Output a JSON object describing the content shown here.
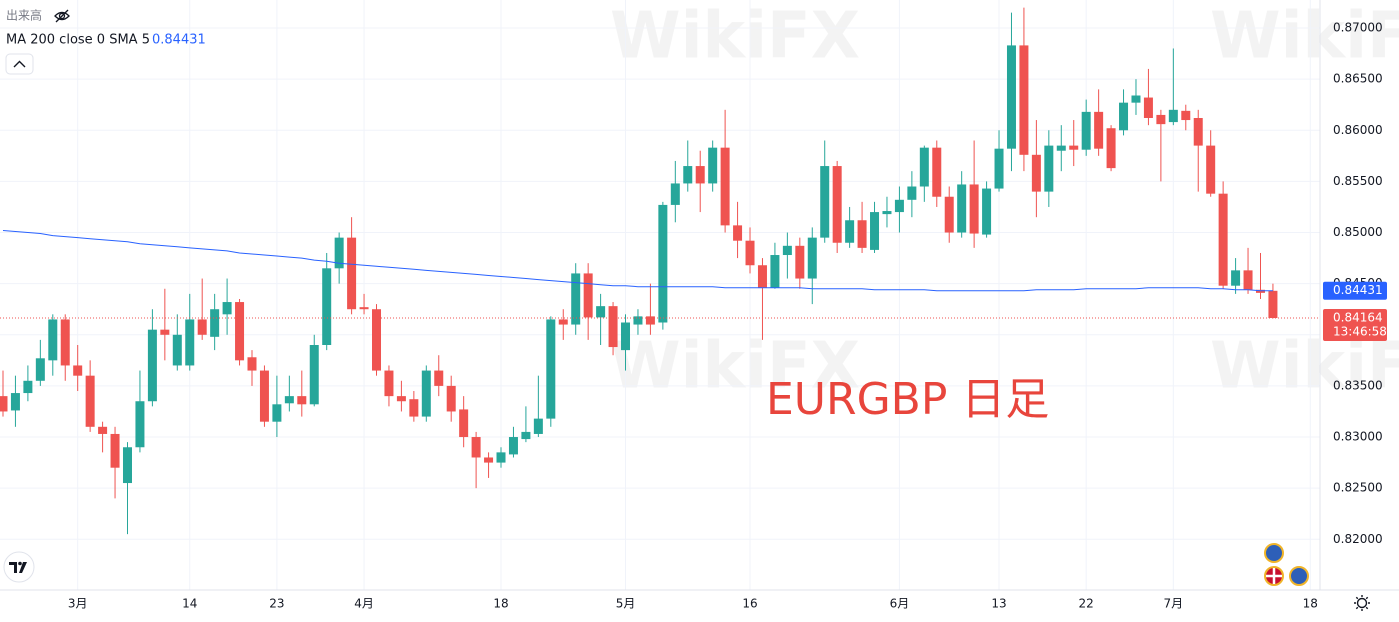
{
  "header": {
    "volume_label": "出来高"
  },
  "chart_data": {
    "type": "candlestick",
    "annotation": "EURGBP 日足",
    "watermark": "WikiFX",
    "up_color": "#26a69a",
    "down_color": "#ef5350",
    "grid": true,
    "xlim": [
      -0.24,
      105.78
    ],
    "xticks": [
      {
        "value": 6,
        "label": "3月"
      },
      {
        "value": 15,
        "label": "14"
      },
      {
        "value": 22,
        "label": "23"
      },
      {
        "value": 29,
        "label": "4月"
      },
      {
        "value": 40,
        "label": "18"
      },
      {
        "value": 50,
        "label": "5月"
      },
      {
        "value": 60,
        "label": "16"
      },
      {
        "value": 72,
        "label": "6月"
      },
      {
        "value": 80,
        "label": "13"
      },
      {
        "value": 87,
        "label": "22"
      },
      {
        "value": 94,
        "label": "7月"
      },
      {
        "value": 105,
        "label": "18"
      }
    ],
    "ylim": [
      0.81504,
      0.87274
    ],
    "yticks": [
      {
        "value": 0.82,
        "label": "0.82000"
      },
      {
        "value": 0.825,
        "label": "0.82500"
      },
      {
        "value": 0.83,
        "label": "0.83000"
      },
      {
        "value": 0.835,
        "label": "0.83500"
      },
      {
        "value": 0.84,
        "label": "0.84000"
      },
      {
        "value": 0.845,
        "label": "0.84500"
      },
      {
        "value": 0.85,
        "label": "0.85000"
      },
      {
        "value": 0.855,
        "label": "0.85500"
      },
      {
        "value": 0.86,
        "label": "0.86000"
      },
      {
        "value": 0.865,
        "label": "0.86500"
      },
      {
        "value": 0.87,
        "label": "0.87000"
      }
    ],
    "ohlc_order": [
      "open",
      "high",
      "low",
      "close"
    ],
    "candles": [
      [
        0.834,
        0.8365,
        0.832,
        0.8325
      ],
      [
        0.8326,
        0.836,
        0.831,
        0.8343
      ],
      [
        0.8343,
        0.837,
        0.8335,
        0.8355
      ],
      [
        0.8355,
        0.8395,
        0.835,
        0.8377
      ],
      [
        0.8375,
        0.842,
        0.836,
        0.8415
      ],
      [
        0.8415,
        0.842,
        0.8355,
        0.837
      ],
      [
        0.837,
        0.839,
        0.8345,
        0.836
      ],
      [
        0.836,
        0.8375,
        0.8305,
        0.831
      ],
      [
        0.831,
        0.8315,
        0.8285,
        0.8303
      ],
      [
        0.8303,
        0.831,
        0.824,
        0.827
      ],
      [
        0.8255,
        0.8295,
        0.8205,
        0.829
      ],
      [
        0.829,
        0.8365,
        0.8285,
        0.8335
      ],
      [
        0.8335,
        0.8425,
        0.833,
        0.8405
      ],
      [
        0.8405,
        0.8445,
        0.8375,
        0.84
      ],
      [
        0.837,
        0.842,
        0.8365,
        0.84
      ],
      [
        0.837,
        0.844,
        0.8365,
        0.8415
      ],
      [
        0.8415,
        0.8455,
        0.8395,
        0.84
      ],
      [
        0.8398,
        0.844,
        0.8385,
        0.8425
      ],
      [
        0.842,
        0.8455,
        0.84,
        0.8432
      ],
      [
        0.8432,
        0.8435,
        0.837,
        0.8375
      ],
      [
        0.8378,
        0.8385,
        0.835,
        0.8365
      ],
      [
        0.8365,
        0.837,
        0.831,
        0.8315
      ],
      [
        0.8315,
        0.836,
        0.83,
        0.8332
      ],
      [
        0.8333,
        0.836,
        0.8325,
        0.834
      ],
      [
        0.834,
        0.8365,
        0.832,
        0.8332
      ],
      [
        0.8332,
        0.84,
        0.833,
        0.839
      ],
      [
        0.839,
        0.848,
        0.8385,
        0.8465
      ],
      [
        0.8465,
        0.85,
        0.845,
        0.8495
      ],
      [
        0.8495,
        0.8515,
        0.842,
        0.8425
      ],
      [
        0.8427,
        0.844,
        0.842,
        0.8425
      ],
      [
        0.8425,
        0.843,
        0.836,
        0.8365
      ],
      [
        0.8365,
        0.837,
        0.833,
        0.834
      ],
      [
        0.834,
        0.8355,
        0.8325,
        0.8335
      ],
      [
        0.8337,
        0.8345,
        0.8315,
        0.832
      ],
      [
        0.832,
        0.837,
        0.8315,
        0.8365
      ],
      [
        0.8365,
        0.838,
        0.834,
        0.835
      ],
      [
        0.835,
        0.836,
        0.8315,
        0.8325
      ],
      [
        0.8327,
        0.834,
        0.829,
        0.83
      ],
      [
        0.83,
        0.8305,
        0.825,
        0.828
      ],
      [
        0.828,
        0.8285,
        0.826,
        0.8275
      ],
      [
        0.8275,
        0.829,
        0.827,
        0.8285
      ],
      [
        0.8283,
        0.831,
        0.828,
        0.83
      ],
      [
        0.8298,
        0.833,
        0.8295,
        0.8305
      ],
      [
        0.8303,
        0.836,
        0.83,
        0.8318
      ],
      [
        0.8318,
        0.8418,
        0.831,
        0.8415
      ],
      [
        0.8415,
        0.8425,
        0.8395,
        0.841
      ],
      [
        0.841,
        0.847,
        0.84,
        0.846
      ],
      [
        0.846,
        0.847,
        0.8395,
        0.8417
      ],
      [
        0.8417,
        0.844,
        0.839,
        0.8428
      ],
      [
        0.8428,
        0.8432,
        0.838,
        0.8388
      ],
      [
        0.8385,
        0.842,
        0.8365,
        0.8412
      ],
      [
        0.841,
        0.8425,
        0.84,
        0.8418
      ],
      [
        0.8418,
        0.845,
        0.84,
        0.841
      ],
      [
        0.8412,
        0.853,
        0.8405,
        0.8527
      ],
      [
        0.8527,
        0.857,
        0.851,
        0.8548
      ],
      [
        0.8548,
        0.859,
        0.854,
        0.8565
      ],
      [
        0.8565,
        0.858,
        0.852,
        0.8548
      ],
      [
        0.8548,
        0.859,
        0.854,
        0.8583
      ],
      [
        0.8583,
        0.862,
        0.85,
        0.8507
      ],
      [
        0.8507,
        0.853,
        0.8475,
        0.8492
      ],
      [
        0.8492,
        0.8505,
        0.846,
        0.8468
      ],
      [
        0.8468,
        0.8475,
        0.8395,
        0.8446
      ],
      [
        0.8446,
        0.849,
        0.8445,
        0.8478
      ],
      [
        0.8478,
        0.85,
        0.8455,
        0.8487
      ],
      [
        0.8487,
        0.8495,
        0.8445,
        0.8455
      ],
      [
        0.8455,
        0.8505,
        0.843,
        0.8495
      ],
      [
        0.8495,
        0.859,
        0.849,
        0.8565
      ],
      [
        0.8565,
        0.857,
        0.848,
        0.849
      ],
      [
        0.849,
        0.8525,
        0.8485,
        0.8512
      ],
      [
        0.8512,
        0.853,
        0.848,
        0.8485
      ],
      [
        0.8483,
        0.853,
        0.848,
        0.852
      ],
      [
        0.8518,
        0.8535,
        0.8505,
        0.8521
      ],
      [
        0.852,
        0.8545,
        0.85,
        0.8532
      ],
      [
        0.8532,
        0.856,
        0.8515,
        0.8545
      ],
      [
        0.8545,
        0.8585,
        0.853,
        0.8583
      ],
      [
        0.8583,
        0.859,
        0.8525,
        0.8535
      ],
      [
        0.8535,
        0.8545,
        0.849,
        0.85
      ],
      [
        0.85,
        0.856,
        0.8495,
        0.8547
      ],
      [
        0.8547,
        0.859,
        0.8485,
        0.8499
      ],
      [
        0.8498,
        0.855,
        0.8495,
        0.8543
      ],
      [
        0.8543,
        0.86,
        0.854,
        0.8582
      ],
      [
        0.8582,
        0.8715,
        0.856,
        0.8683
      ],
      [
        0.8683,
        0.872,
        0.856,
        0.8576
      ],
      [
        0.8576,
        0.861,
        0.8515,
        0.854
      ],
      [
        0.854,
        0.86,
        0.8525,
        0.8585
      ],
      [
        0.858,
        0.8605,
        0.856,
        0.8585
      ],
      [
        0.8585,
        0.861,
        0.8565,
        0.8581
      ],
      [
        0.8581,
        0.863,
        0.8575,
        0.8618
      ],
      [
        0.8618,
        0.864,
        0.8575,
        0.8582
      ],
      [
        0.8602,
        0.8605,
        0.856,
        0.8563
      ],
      [
        0.86,
        0.864,
        0.8595,
        0.8627
      ],
      [
        0.8627,
        0.865,
        0.8615,
        0.8634
      ],
      [
        0.8632,
        0.866,
        0.8605,
        0.8612
      ],
      [
        0.8615,
        0.862,
        0.855,
        0.8606
      ],
      [
        0.8608,
        0.868,
        0.8605,
        0.862
      ],
      [
        0.8619,
        0.8625,
        0.86,
        0.861
      ],
      [
        0.8612,
        0.862,
        0.854,
        0.8585
      ],
      [
        0.8585,
        0.86,
        0.8535,
        0.8538
      ],
      [
        0.8538,
        0.855,
        0.8445,
        0.8448
      ],
      [
        0.8448,
        0.8475,
        0.844,
        0.8463
      ],
      [
        0.8463,
        0.8485,
        0.844,
        0.8444
      ],
      [
        0.8444,
        0.848,
        0.8435,
        0.8441
      ],
      [
        0.8443,
        0.845,
        0.8416,
        0.84164
      ]
    ],
    "series": [
      {
        "name": "MA 200 close 0 SMA 5",
        "color": "#2962ff",
        "values": [
          0.8502,
          0.8501,
          0.85,
          0.8499,
          0.8497,
          0.8496,
          0.8495,
          0.8494,
          0.8493,
          0.8492,
          0.8491,
          0.8489,
          0.8488,
          0.8487,
          0.8486,
          0.8485,
          0.8484,
          0.8483,
          0.8482,
          0.848,
          0.8479,
          0.8478,
          0.8477,
          0.8476,
          0.8475,
          0.8473,
          0.8472,
          0.847,
          0.8469,
          0.8468,
          0.8467,
          0.8466,
          0.8465,
          0.8464,
          0.8463,
          0.8462,
          0.8461,
          0.846,
          0.8459,
          0.8458,
          0.8457,
          0.8456,
          0.8455,
          0.8454,
          0.8453,
          0.8452,
          0.8451,
          0.845,
          0.8449,
          0.8448,
          0.8448,
          0.8447,
          0.8447,
          0.8447,
          0.8447,
          0.8447,
          0.8447,
          0.8447,
          0.8446,
          0.8446,
          0.8446,
          0.8446,
          0.8446,
          0.8446,
          0.8446,
          0.8445,
          0.8445,
          0.8445,
          0.8445,
          0.8445,
          0.8444,
          0.8444,
          0.8444,
          0.8444,
          0.8444,
          0.8443,
          0.8443,
          0.8443,
          0.8443,
          0.8443,
          0.8443,
          0.8443,
          0.8443,
          0.8444,
          0.8444,
          0.8444,
          0.8444,
          0.8445,
          0.8445,
          0.8445,
          0.8445,
          0.8445,
          0.8446,
          0.8446,
          0.8446,
          0.8446,
          0.8446,
          0.8445,
          0.8445,
          0.8444,
          0.8444,
          0.8443,
          0.84431
        ],
        "value_labels_last": {
          "value": 0.84431,
          "label": "0.84431"
        }
      }
    ],
    "last_price": {
      "value": 0.84164,
      "label": "0.84164"
    },
    "countdown": "13:46:58"
  }
}
